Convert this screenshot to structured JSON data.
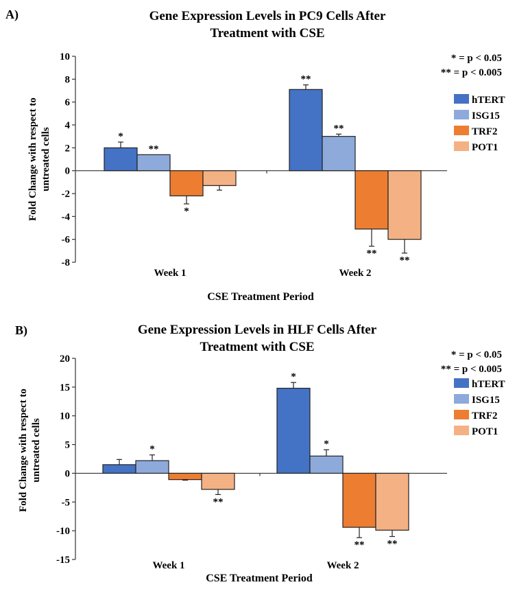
{
  "chart_data": [
    {
      "type": "bar",
      "panel_label": "A)",
      "title_line1": "Gene Expression Levels in PC9 Cells After",
      "title_line2": "Treatment with CSE",
      "xlabel": "CSE Treatment Period",
      "ylabel_line1": "Fold Change with respect to",
      "ylabel_line2": "untreated cells",
      "ylim": [
        -8,
        10
      ],
      "yticks": [
        10,
        8,
        6,
        4,
        2,
        0,
        -2,
        -4,
        -6,
        -8
      ],
      "categories": [
        "Week 1",
        "Week 2"
      ],
      "significance_legend": [
        "* = p < 0.05",
        "** = p < 0.005"
      ],
      "series": [
        {
          "name": "hTERT",
          "color": "#4472c4",
          "values": [
            2.0,
            7.1
          ],
          "errors": [
            0.5,
            0.4
          ],
          "sig": [
            "*",
            "**"
          ]
        },
        {
          "name": "ISG15",
          "color": "#8eaadb",
          "values": [
            1.4,
            3.0
          ],
          "errors": [
            0.0,
            0.2
          ],
          "sig": [
            "**",
            "**"
          ]
        },
        {
          "name": "TRF2",
          "color": "#ed7d31",
          "values": [
            -2.2,
            -5.1
          ],
          "errors": [
            0.7,
            1.5
          ],
          "sig": [
            "*",
            "**"
          ]
        },
        {
          "name": "POT1",
          "color": "#f4b183",
          "values": [
            -1.3,
            -6.0
          ],
          "errors": [
            0.4,
            1.2
          ],
          "sig": [
            "",
            "**"
          ]
        }
      ]
    },
    {
      "type": "bar",
      "panel_label": "B)",
      "title_line1": "Gene Expression Levels in HLF Cells After",
      "title_line2": "Treatment with CSE",
      "xlabel": "CSE Treatment Period",
      "ylabel_line1": "Fold Change with respect to",
      "ylabel_line2": "untreated cells",
      "ylim": [
        -15,
        20
      ],
      "yticks": [
        20,
        15,
        10,
        5,
        0,
        -5,
        -10,
        -15
      ],
      "categories": [
        "Week 1",
        "Week 2"
      ],
      "significance_legend": [
        "* = p < 0.05",
        "** = p < 0.005"
      ],
      "series": [
        {
          "name": "hTERT",
          "color": "#4472c4",
          "values": [
            1.5,
            14.8
          ],
          "errors": [
            0.9,
            1.0
          ],
          "sig": [
            "",
            "*"
          ]
        },
        {
          "name": "ISG15",
          "color": "#8eaadb",
          "values": [
            2.2,
            3.0
          ],
          "errors": [
            1.0,
            1.1
          ],
          "sig": [
            "*",
            "*"
          ]
        },
        {
          "name": "TRF2",
          "color": "#ed7d31",
          "values": [
            -1.1,
            -9.4
          ],
          "errors": [
            0.1,
            1.8
          ],
          "sig": [
            "",
            "**"
          ]
        },
        {
          "name": "POT1",
          "color": "#f4b183",
          "values": [
            -2.8,
            -9.9
          ],
          "errors": [
            0.9,
            1.1
          ],
          "sig": [
            "**",
            "**"
          ]
        }
      ]
    }
  ]
}
